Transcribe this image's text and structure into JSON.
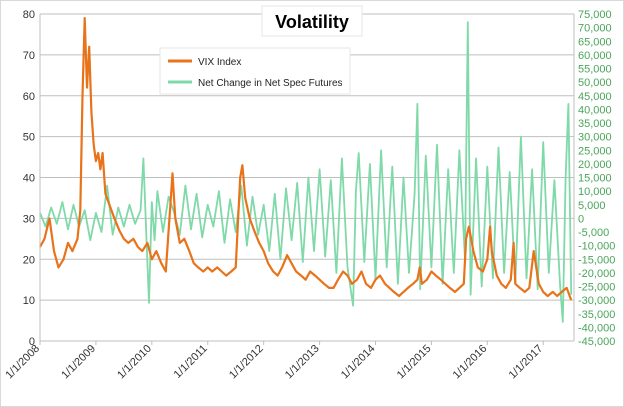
{
  "chart_data": {
    "type": "line",
    "title": "Volatility",
    "x_tick_labels": [
      "1/1/2008",
      "1/1/2009",
      "1/1/2010",
      "1/1/2011",
      "1/1/2012",
      "1/1/2013",
      "1/1/2014",
      "1/1/2015",
      "1/1/2016",
      "1/1/2017"
    ],
    "x_range": [
      2008.0,
      2017.55
    ],
    "y_left": {
      "range": [
        0,
        80
      ],
      "ticks": [
        "0",
        "10",
        "20",
        "30",
        "40",
        "50",
        "60",
        "70",
        "80"
      ],
      "label": ""
    },
    "y_right": {
      "range": [
        -45000,
        75000
      ],
      "ticks": [
        "-45,000",
        "-40,000",
        "-35,000",
        "-30,000",
        "-25,000",
        "-20,000",
        "-15,000",
        "-10,000",
        "-5,000",
        "0",
        "5,000",
        "10,000",
        "15,000",
        "20,000",
        "25,000",
        "30,000",
        "35,000",
        "40,000",
        "45,000",
        "50,000",
        "55,000",
        "60,000",
        "65,000",
        "70,000",
        "75,000"
      ],
      "label": ""
    },
    "grid": "horizontal",
    "legend": "top-center",
    "colors": {
      "vix": "#e8731a",
      "spec": "#7fd9a8",
      "right_axis_text": "#4aa55a",
      "grid": "#bfbfbf"
    },
    "series": [
      {
        "name": "VIX Index",
        "axis": "left",
        "x": [
          2008.0,
          2008.08,
          2008.17,
          2008.25,
          2008.33,
          2008.42,
          2008.5,
          2008.58,
          2008.67,
          2008.72,
          2008.76,
          2008.8,
          2008.84,
          2008.88,
          2008.92,
          2008.96,
          2009.0,
          2009.04,
          2009.08,
          2009.12,
          2009.17,
          2009.25,
          2009.33,
          2009.42,
          2009.5,
          2009.58,
          2009.67,
          2009.75,
          2009.83,
          2009.92,
          2010.0,
          2010.08,
          2010.17,
          2010.25,
          2010.33,
          2010.37,
          2010.42,
          2010.5,
          2010.58,
          2010.67,
          2010.75,
          2010.83,
          2010.92,
          2011.0,
          2011.08,
          2011.17,
          2011.25,
          2011.33,
          2011.42,
          2011.5,
          2011.58,
          2011.62,
          2011.67,
          2011.75,
          2011.83,
          2011.92,
          2012.0,
          2012.08,
          2012.17,
          2012.25,
          2012.33,
          2012.42,
          2012.5,
          2012.58,
          2012.67,
          2012.75,
          2012.83,
          2012.92,
          2013.0,
          2013.08,
          2013.17,
          2013.25,
          2013.33,
          2013.42,
          2013.5,
          2013.58,
          2013.67,
          2013.75,
          2013.83,
          2013.92,
          2014.0,
          2014.08,
          2014.17,
          2014.25,
          2014.33,
          2014.42,
          2014.5,
          2014.58,
          2014.67,
          2014.75,
          2014.79,
          2014.83,
          2014.92,
          2015.0,
          2015.08,
          2015.17,
          2015.25,
          2015.33,
          2015.42,
          2015.5,
          2015.58,
          2015.62,
          2015.67,
          2015.75,
          2015.83,
          2015.92,
          2016.0,
          2016.05,
          2016.08,
          2016.17,
          2016.25,
          2016.33,
          2016.42,
          2016.47,
          2016.5,
          2016.58,
          2016.67,
          2016.75,
          2016.83,
          2016.92,
          2017.0,
          2017.08,
          2017.17,
          2017.25,
          2017.33,
          2017.42,
          2017.5
        ],
        "values": [
          23,
          25,
          30,
          22,
          18,
          20,
          24,
          22,
          25,
          32,
          60,
          79,
          62,
          72,
          56,
          48,
          44,
          46,
          42,
          46,
          36,
          33,
          30,
          27,
          25,
          24,
          25,
          23,
          22,
          24,
          20,
          22,
          19,
          17,
          33,
          41,
          30,
          24,
          25,
          22,
          19,
          18,
          17,
          18,
          17,
          18,
          17,
          16,
          17,
          18,
          40,
          43,
          35,
          30,
          27,
          24,
          22,
          19,
          17,
          16,
          18,
          21,
          19,
          17,
          16,
          15,
          17,
          16,
          15,
          14,
          13,
          13,
          15,
          17,
          16,
          14,
          15,
          17,
          14,
          13,
          15,
          16,
          14,
          13,
          12,
          11,
          12,
          13,
          14,
          15,
          18,
          14,
          15,
          17,
          16,
          15,
          14,
          13,
          12,
          13,
          14,
          25,
          28,
          22,
          18,
          17,
          20,
          28,
          22,
          16,
          14,
          13,
          15,
          24,
          14,
          13,
          12,
          13,
          22,
          14,
          12,
          11,
          12,
          11,
          12,
          13,
          10
        ]
      },
      {
        "name": "Net Change in Net Spec Futures",
        "axis": "right",
        "x": [
          2008.0,
          2008.1,
          2008.2,
          2008.3,
          2008.4,
          2008.5,
          2008.6,
          2008.7,
          2008.8,
          2008.9,
          2009.0,
          2009.1,
          2009.2,
          2009.3,
          2009.4,
          2009.5,
          2009.6,
          2009.7,
          2009.8,
          2009.85,
          2009.9,
          2009.95,
          2010.0,
          2010.05,
          2010.1,
          2010.2,
          2010.3,
          2010.4,
          2010.5,
          2010.6,
          2010.7,
          2010.8,
          2010.9,
          2011.0,
          2011.1,
          2011.2,
          2011.3,
          2011.4,
          2011.5,
          2011.6,
          2011.7,
          2011.8,
          2011.9,
          2012.0,
          2012.1,
          2012.2,
          2012.3,
          2012.4,
          2012.5,
          2012.6,
          2012.7,
          2012.8,
          2012.9,
          2013.0,
          2013.1,
          2013.2,
          2013.3,
          2013.4,
          2013.5,
          2013.6,
          2013.65,
          2013.7,
          2013.8,
          2013.9,
          2014.0,
          2014.1,
          2014.2,
          2014.3,
          2014.4,
          2014.5,
          2014.6,
          2014.7,
          2014.75,
          2014.8,
          2014.9,
          2015.0,
          2015.1,
          2015.2,
          2015.3,
          2015.4,
          2015.5,
          2015.6,
          2015.65,
          2015.7,
          2015.8,
          2015.9,
          2016.0,
          2016.1,
          2016.2,
          2016.3,
          2016.4,
          2016.5,
          2016.6,
          2016.7,
          2016.8,
          2016.9,
          2017.0,
          2017.1,
          2017.2,
          2017.3,
          2017.35,
          2017.4,
          2017.45,
          2017.5
        ],
        "values": [
          2000,
          -3000,
          4000,
          -2000,
          6000,
          -4000,
          5000,
          -3000,
          3000,
          -8000,
          2000,
          -5000,
          12000,
          -6000,
          4000,
          -3000,
          5000,
          -2000,
          3000,
          22000,
          -5000,
          -31000,
          6000,
          -8000,
          10000,
          -5000,
          8000,
          2000,
          -6000,
          12000,
          -4000,
          9000,
          -7000,
          5000,
          -3000,
          10000,
          -9000,
          7000,
          -5000,
          12000,
          -10000,
          8000,
          -6000,
          5000,
          -12000,
          9000,
          -15000,
          11000,
          -8000,
          13000,
          -16000,
          15000,
          -12000,
          18000,
          -14000,
          14000,
          -20000,
          22000,
          -18000,
          -32000,
          10000,
          24000,
          -16000,
          20000,
          -22000,
          25000,
          -18000,
          19000,
          -24000,
          15000,
          -20000,
          9000,
          42000,
          -26000,
          23000,
          -18000,
          27000,
          -24000,
          18000,
          -20000,
          25000,
          -15000,
          72000,
          -28000,
          22000,
          -25000,
          19000,
          -22000,
          26000,
          -20000,
          17000,
          -24000,
          30000,
          -22000,
          18000,
          -26000,
          28000,
          -20000,
          14000,
          -24000,
          -38000,
          15000,
          42000,
          -28000
        ]
      }
    ]
  }
}
